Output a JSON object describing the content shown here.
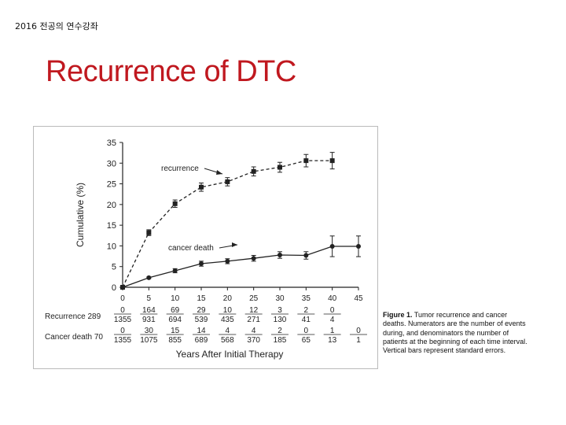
{
  "header": {
    "text": "2016 전공의 연수강좌"
  },
  "slide": {
    "title": "Recurrence of DTC"
  },
  "caption": {
    "label": "Figure 1.",
    "text": " Tumor recurrence and cancer deaths. Numerators are the number of events during, and denominators the number of patients at the beginning of each time interval. Vertical bars represent standard errors."
  },
  "chart_data": {
    "type": "line",
    "xlabel": "Years After Initial Therapy",
    "ylabel": "Cumulative (%)",
    "xlim": [
      0,
      45
    ],
    "ylim": [
      0,
      35
    ],
    "xticks": [
      0,
      5,
      10,
      15,
      20,
      25,
      30,
      35,
      40,
      45
    ],
    "yticks": [
      0,
      5,
      10,
      15,
      20,
      25,
      30,
      35
    ],
    "grid": false,
    "series": [
      {
        "name": "recurrence",
        "x": [
          0,
          5,
          10,
          15,
          20,
          25,
          30,
          35,
          40
        ],
        "y": [
          0,
          13.2,
          20.2,
          24.2,
          25.5,
          28.0,
          29.0,
          30.6,
          30.6
        ],
        "err": [
          0,
          0.7,
          0.9,
          1.0,
          1.0,
          1.1,
          1.2,
          1.5,
          2.0
        ]
      },
      {
        "name": "cancer death",
        "x": [
          0,
          5,
          10,
          15,
          20,
          25,
          30,
          35,
          40,
          45
        ],
        "y": [
          0,
          2.3,
          4.0,
          5.7,
          6.3,
          7.0,
          7.8,
          7.7,
          9.9,
          9.9
        ],
        "err": [
          0,
          0.2,
          0.5,
          0.6,
          0.6,
          0.7,
          0.8,
          0.9,
          2.5,
          2.5
        ]
      }
    ],
    "annotations": [
      {
        "text": "recurrence",
        "points_to": "recurrence"
      },
      {
        "text": "cancer death",
        "points_to": "cancer death"
      }
    ],
    "table": {
      "rows": [
        {
          "label": "Recurrence 289",
          "numerators": [
            "0",
            "164",
            "69",
            "29",
            "10",
            "12",
            "3",
            "2",
            "0",
            ""
          ],
          "denominators": [
            "1355",
            "931",
            "694",
            "539",
            "435",
            "271",
            "130",
            "41",
            "4",
            ""
          ]
        },
        {
          "label": "Cancer  death 70",
          "numerators": [
            "0",
            "30",
            "15",
            "14",
            "4",
            "4",
            "2",
            "0",
            "1",
            "0"
          ],
          "denominators": [
            "1355",
            "1075",
            "855",
            "689",
            "568",
            "370",
            "185",
            "65",
            "13",
            "1"
          ]
        }
      ]
    }
  }
}
